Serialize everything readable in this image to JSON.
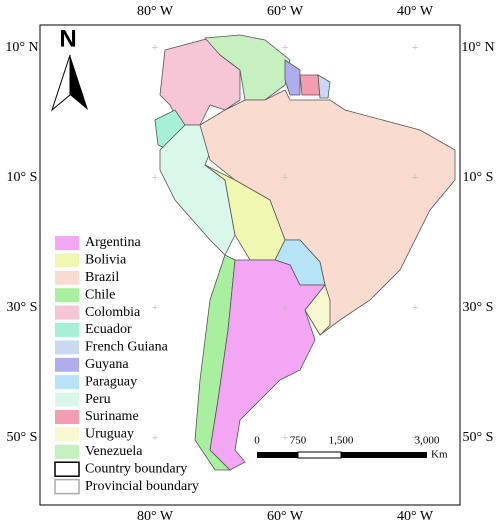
{
  "north": "N",
  "top_labels": [
    "80° W",
    "60° W",
    "40° W"
  ],
  "bottom_labels": [
    "80° W",
    "60° W",
    "40° W"
  ],
  "left_labels": [
    "10° N",
    "10° S",
    "30° S",
    "50° S"
  ],
  "right_labels": [
    "10° N",
    "10° S",
    "30° S",
    "50° S"
  ],
  "legend": [
    {
      "name": "Argentina",
      "color": "#f3a6f3"
    },
    {
      "name": "Bolivia",
      "color": "#eff7b0"
    },
    {
      "name": "Brazil",
      "color": "#f9dccf"
    },
    {
      "name": "Chile",
      "color": "#a9efa0"
    },
    {
      "name": "Colombia",
      "color": "#f6c6d6"
    },
    {
      "name": "Ecuador",
      "color": "#a6f0d8"
    },
    {
      "name": "French Guiana",
      "color": "#c9d9f2"
    },
    {
      "name": "Guyana",
      "color": "#b0acf0"
    },
    {
      "name": "Paraguay",
      "color": "#b7e3f7"
    },
    {
      "name": "Peru",
      "color": "#d9f7ea"
    },
    {
      "name": "Suriname",
      "color": "#f59cb0"
    },
    {
      "name": "Uruguay",
      "color": "#f7f7d0"
    },
    {
      "name": "Venezuela",
      "color": "#c6f0c0"
    }
  ],
  "boundary_legend": [
    "Country boundary",
    "Provincial boundary"
  ],
  "scale": {
    "labels": [
      "0",
      "750",
      "1,500",
      "3,000"
    ],
    "unit": "Km"
  }
}
